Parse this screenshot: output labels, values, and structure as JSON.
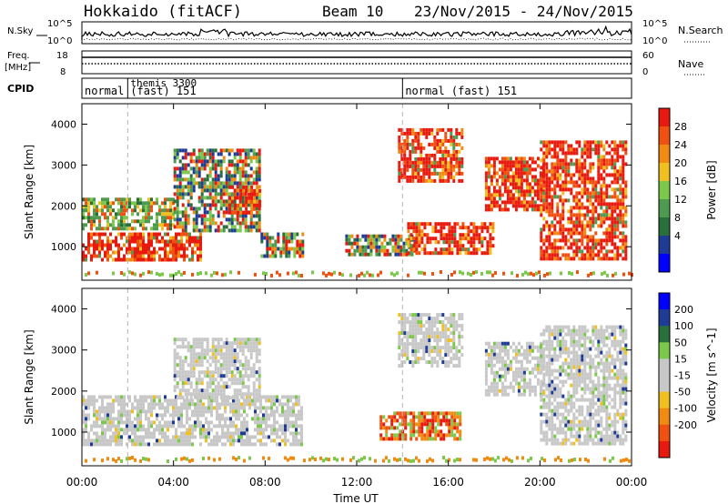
{
  "header": {
    "radar": "Hokkaido (fitACF)",
    "beam": "Beam 10",
    "date_range": "23/Nov/2015 - 24/Nov/2015"
  },
  "top_panels": {
    "nsky_label": "N.Sky",
    "nsky_ticks": [
      "10^5",
      "10^0"
    ],
    "nsearch_label": "N.Search",
    "nsearch_ticks": [
      "10^5",
      "10^0"
    ],
    "freq_label_1": "Freq.",
    "freq_label_2": "[MHz]",
    "freq_ticks": [
      "18",
      "8"
    ],
    "nave_label": "Nave",
    "nave_ticks": [
      "60",
      "0"
    ],
    "cpid_label": "CPID",
    "cpid_segments": [
      {
        "text": "normal",
        "start_hour": 0
      },
      {
        "text": "themis 3300",
        "start_hour": 2
      },
      {
        "text": "(fast) 151",
        "start_hour": 2
      },
      {
        "text": "normal (fast) 151",
        "start_hour": 14
      }
    ]
  },
  "colors": {
    "power": [
      "#0000ff",
      "#1e3c96",
      "#2a6e3c",
      "#4e9a50",
      "#7cc84a",
      "#f0c020",
      "#f08a10",
      "#f05010",
      "#e81a10"
    ],
    "velocity_neg": [
      "#e81a10",
      "#f05010",
      "#f08a10",
      "#f0c020"
    ],
    "velocity_mid": "#c8c8c8",
    "velocity_pos": [
      "#7cc84a",
      "#2a6e3c",
      "#1e3c96",
      "#0000ff"
    ]
  },
  "chart_data": [
    {
      "type": "heatmap",
      "title": "Power",
      "xlabel": "",
      "ylabel": "Slant Range [km]",
      "xlim": [
        0,
        24
      ],
      "ylim": [
        180,
        4500
      ],
      "x_ticks": [
        "00:00",
        "04:00",
        "08:00",
        "12:00",
        "16:00",
        "20:00",
        "00:00"
      ],
      "y_ticks": [
        "1000",
        "2000",
        "3000",
        "4000"
      ],
      "colorbar_label": "Power [dB]",
      "colorbar_ticks": [
        "28",
        "24",
        "20",
        "16",
        "12",
        "8",
        "4"
      ],
      "regions": [
        {
          "x": [
            0.0,
            5.2
          ],
          "y": [
            700,
            1350
          ],
          "level": "red"
        },
        {
          "x": [
            0.0,
            4.0
          ],
          "y": [
            1450,
            2200
          ],
          "level": "green"
        },
        {
          "x": [
            4.0,
            7.8
          ],
          "y": [
            1400,
            3400
          ],
          "level": "mixed"
        },
        {
          "x": [
            6.4,
            7.8
          ],
          "y": [
            1800,
            2500
          ],
          "level": "red"
        },
        {
          "x": [
            7.8,
            9.6
          ],
          "y": [
            800,
            1350
          ],
          "level": "mixed"
        },
        {
          "x": [
            11.5,
            14.5
          ],
          "y": [
            800,
            1300
          ],
          "level": "mixed"
        },
        {
          "x": [
            13.8,
            16.6
          ],
          "y": [
            2600,
            3900
          ],
          "level": "red"
        },
        {
          "x": [
            14.2,
            18.0
          ],
          "y": [
            800,
            1600
          ],
          "level": "red"
        },
        {
          "x": [
            17.6,
            20.2
          ],
          "y": [
            1900,
            3200
          ],
          "level": "red"
        },
        {
          "x": [
            20.0,
            23.8
          ],
          "y": [
            700,
            3600
          ],
          "level": "red"
        }
      ]
    },
    {
      "type": "heatmap",
      "title": "Velocity",
      "xlabel": "Time UT",
      "ylabel": "Slant Range [km]",
      "xlim": [
        0,
        24
      ],
      "ylim": [
        180,
        4500
      ],
      "x_ticks": [
        "00:00",
        "04:00",
        "08:00",
        "12:00",
        "16:00",
        "20:00",
        "00:00"
      ],
      "y_ticks": [
        "1000",
        "2000",
        "3000",
        "4000"
      ],
      "colorbar_label": "Velocity [m s^-1]",
      "colorbar_ticks": [
        "200",
        "100",
        "50",
        "15",
        "-15",
        "-50",
        "-100",
        "-200"
      ],
      "regions": [
        {
          "x": [
            0.0,
            9.6
          ],
          "y": [
            700,
            1900
          ],
          "level": "ground"
        },
        {
          "x": [
            4.0,
            7.8
          ],
          "y": [
            1800,
            3300
          ],
          "level": "ground"
        },
        {
          "x": [
            13.8,
            16.6
          ],
          "y": [
            2600,
            3900
          ],
          "level": "ground"
        },
        {
          "x": [
            13.0,
            16.5
          ],
          "y": [
            800,
            1500
          ],
          "level": "negative"
        },
        {
          "x": [
            17.6,
            20.2
          ],
          "y": [
            1900,
            3200
          ],
          "level": "ground"
        },
        {
          "x": [
            20.0,
            23.8
          ],
          "y": [
            700,
            3600
          ],
          "level": "ground"
        }
      ]
    }
  ]
}
